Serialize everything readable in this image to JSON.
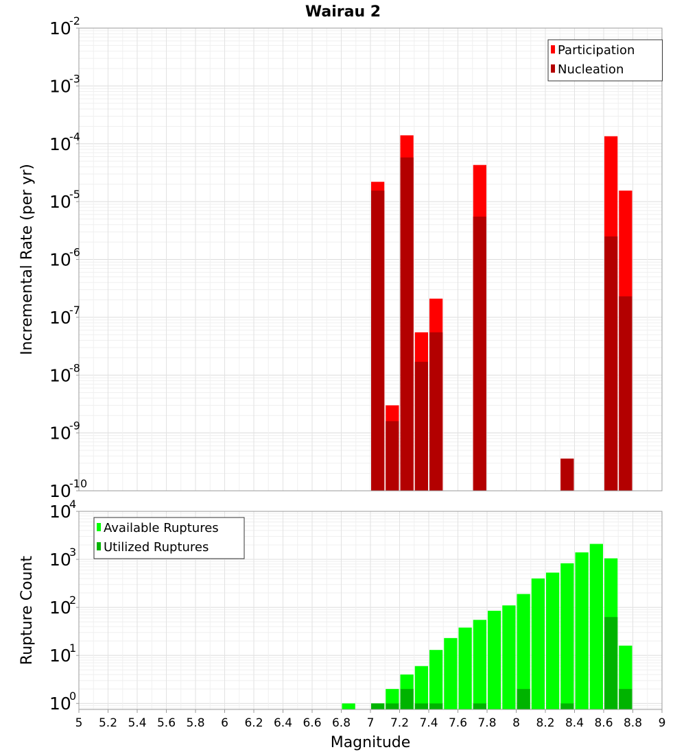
{
  "chart_data": {
    "title": "Wairau 2",
    "xlabel": "Magnitude",
    "x_ticks": [
      "5",
      "5.2",
      "5.4",
      "5.6",
      "5.8",
      "6",
      "6.2",
      "6.4",
      "6.6",
      "6.8",
      "7",
      "7.2",
      "7.4",
      "7.6",
      "7.8",
      "8",
      "8.2",
      "8.4",
      "8.6",
      "8.8",
      "9"
    ],
    "xlim": [
      5,
      9
    ],
    "bin_width": 0.1,
    "grid": true,
    "panels": [
      {
        "type": "bar",
        "scale": "log",
        "ylabel": "Incremental Rate (per yr)",
        "ylim": [
          1e-10,
          0.01
        ],
        "y_ticks": [
          {
            "base": "10",
            "exp": "-10"
          },
          {
            "base": "10",
            "exp": "-9"
          },
          {
            "base": "10",
            "exp": "-8"
          },
          {
            "base": "10",
            "exp": "-7"
          },
          {
            "base": "10",
            "exp": "-6"
          },
          {
            "base": "10",
            "exp": "-5"
          },
          {
            "base": "10",
            "exp": "-4"
          },
          {
            "base": "10",
            "exp": "-3"
          },
          {
            "base": "10",
            "exp": "-2"
          }
        ],
        "legend_position": "top-right",
        "series": [
          {
            "name": "Participation",
            "color": "#ff0000",
            "points": [
              {
                "x": 7.05,
                "y": 2.2e-05
              },
              {
                "x": 7.15,
                "y": 3e-09
              },
              {
                "x": 7.25,
                "y": 0.00014
              },
              {
                "x": 7.35,
                "y": 5.5e-08
              },
              {
                "x": 7.45,
                "y": 2.1e-07
              },
              {
                "x": 7.75,
                "y": 4.3e-05
              },
              {
                "x": 8.35,
                "y": 3.6e-10
              },
              {
                "x": 8.65,
                "y": 0.000135
              },
              {
                "x": 8.75,
                "y": 1.55e-05
              }
            ]
          },
          {
            "name": "Nucleation",
            "color": "#b30000",
            "points": [
              {
                "x": 7.05,
                "y": 1.55e-05
              },
              {
                "x": 7.15,
                "y": 1.6e-09
              },
              {
                "x": 7.25,
                "y": 5.8e-05
              },
              {
                "x": 7.35,
                "y": 1.7e-08
              },
              {
                "x": 7.45,
                "y": 5.5e-08
              },
              {
                "x": 7.75,
                "y": 5.5e-06
              },
              {
                "x": 8.35,
                "y": 3.6e-10
              },
              {
                "x": 8.65,
                "y": 2.5e-06
              },
              {
                "x": 8.75,
                "y": 2.3e-07
              }
            ]
          }
        ]
      },
      {
        "type": "bar",
        "scale": "log",
        "ylabel": "Rupture Count",
        "ylim": [
          0.75,
          10000.0
        ],
        "y_ticks": [
          {
            "base": "10",
            "exp": "0",
            "value": 1
          },
          {
            "base": "10",
            "exp": "1",
            "value": 10
          },
          {
            "base": "10",
            "exp": "2",
            "value": 100
          },
          {
            "base": "10",
            "exp": "3",
            "value": 1000
          },
          {
            "base": "10",
            "exp": "4",
            "value": 10000
          }
        ],
        "legend_position": "top-left",
        "series": [
          {
            "name": "Available Ruptures",
            "color": "#00ff00",
            "points": [
              {
                "x": 6.85,
                "y": 1
              },
              {
                "x": 7.05,
                "y": 1
              },
              {
                "x": 7.15,
                "y": 2
              },
              {
                "x": 7.25,
                "y": 4
              },
              {
                "x": 7.35,
                "y": 6
              },
              {
                "x": 7.45,
                "y": 13
              },
              {
                "x": 7.55,
                "y": 23
              },
              {
                "x": 7.65,
                "y": 38
              },
              {
                "x": 7.75,
                "y": 55
              },
              {
                "x": 7.85,
                "y": 85
              },
              {
                "x": 7.95,
                "y": 110
              },
              {
                "x": 8.05,
                "y": 190
              },
              {
                "x": 8.15,
                "y": 400
              },
              {
                "x": 8.25,
                "y": 530
              },
              {
                "x": 8.35,
                "y": 830
              },
              {
                "x": 8.45,
                "y": 1400
              },
              {
                "x": 8.55,
                "y": 2100
              },
              {
                "x": 8.65,
                "y": 1050
              },
              {
                "x": 8.75,
                "y": 16
              }
            ]
          },
          {
            "name": "Utilized Ruptures",
            "color": "#00b300",
            "points": [
              {
                "x": 7.05,
                "y": 1
              },
              {
                "x": 7.15,
                "y": 1
              },
              {
                "x": 7.25,
                "y": 2
              },
              {
                "x": 7.35,
                "y": 1
              },
              {
                "x": 7.45,
                "y": 1
              },
              {
                "x": 7.75,
                "y": 1
              },
              {
                "x": 8.05,
                "y": 2
              },
              {
                "x": 8.35,
                "y": 1
              },
              {
                "x": 8.65,
                "y": 63
              },
              {
                "x": 8.75,
                "y": 2
              }
            ]
          }
        ]
      }
    ]
  }
}
